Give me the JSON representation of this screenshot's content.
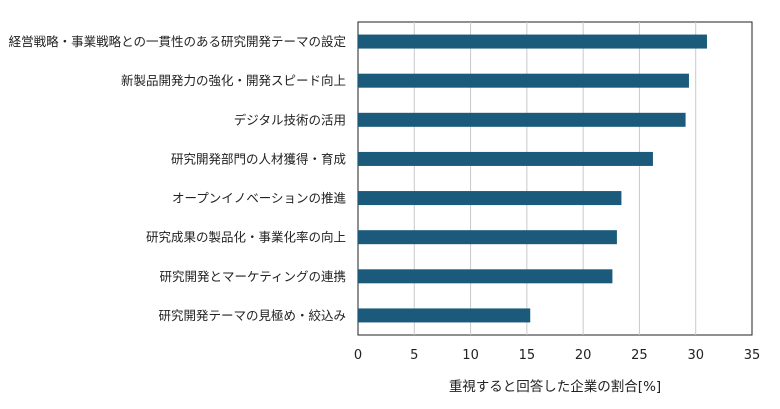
{
  "chart_data": {
    "type": "bar",
    "orientation": "horizontal",
    "categories": [
      "経営戦略・事業戦略との一貫性のある研究開発テーマの設定",
      "新製品開発力の強化・開発スピード向上",
      "デジタル技術の活用",
      "研究開発部門の人材獲得・育成",
      "オープンイノベーションの推進",
      "研究成果の製品化・事業化率の向上",
      "研究開発とマーケティングの連携",
      "研究開発テーマの見極め・絞込み"
    ],
    "values": [
      31.0,
      29.4,
      29.1,
      26.2,
      23.4,
      23.0,
      22.6,
      15.3
    ],
    "xlabel": "重視すると回答した企業の割合[%]",
    "ylabel": "",
    "xlim": [
      0,
      35
    ],
    "xticks": [
      "0",
      "5",
      "10",
      "15",
      "20",
      "25",
      "30",
      "35"
    ],
    "grid": "vertical",
    "bar_color": "#1b5a7a"
  }
}
